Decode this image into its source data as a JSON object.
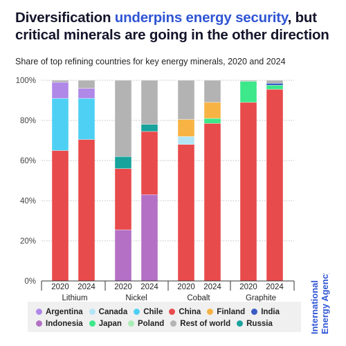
{
  "title": {
    "part1": "Diversification ",
    "accent": "underpins energy security",
    "part2": ", but critical minerals are going in the other direction"
  },
  "subtitle": "Share of top refining countries for key energy minerals, 2020 and 2024",
  "logo": {
    "line1": "International",
    "line2": "Energy Agency",
    "color": "#2f55d4"
  },
  "colors": {
    "Argentina": "#b088e8",
    "Canada": "#b2e5f5",
    "Chile": "#4dd0f4",
    "China": "#e84b4b",
    "Finland": "#f7b344",
    "India": "#3a5cc4",
    "Indonesia": "#b370c4",
    "Japan": "#3ce88a",
    "Poland": "#a8ecb6",
    "Rest of world": "#b3b3b3",
    "Russia": "#18a39c"
  },
  "legend": [
    [
      "Argentina",
      "Canada",
      "Chile",
      "China",
      "Finland",
      "India"
    ],
    [
      "Indonesia",
      "Japan",
      "Poland",
      "Rest of world",
      "Russia"
    ]
  ],
  "chart_data": {
    "type": "bar",
    "stacked": true,
    "title": "Share of top refining countries for key energy minerals, 2020 and 2024",
    "ylim": [
      0,
      100
    ],
    "yticks": [
      "0%",
      "20%",
      "40%",
      "60%",
      "80%",
      "100%"
    ],
    "groups": [
      "Lithium",
      "Nickel",
      "Cobalt",
      "Graphite"
    ],
    "bars": [
      {
        "group": "Lithium",
        "year": "2020",
        "segments": [
          {
            "name": "China",
            "value": 65
          },
          {
            "name": "Chile",
            "value": 26
          },
          {
            "name": "Argentina",
            "value": 8
          },
          {
            "name": "Rest of world",
            "value": 1
          }
        ]
      },
      {
        "group": "Lithium",
        "year": "2024",
        "segments": [
          {
            "name": "China",
            "value": 70.5
          },
          {
            "name": "Chile",
            "value": 20.5
          },
          {
            "name": "Argentina",
            "value": 5
          },
          {
            "name": "Rest of world",
            "value": 4
          }
        ]
      },
      {
        "group": "Nickel",
        "year": "2020",
        "segments": [
          {
            "name": "Indonesia",
            "value": 25.5
          },
          {
            "name": "China",
            "value": 30.5
          },
          {
            "name": "Russia",
            "value": 6
          },
          {
            "name": "Rest of world",
            "value": 38
          }
        ]
      },
      {
        "group": "Nickel",
        "year": "2024",
        "segments": [
          {
            "name": "Indonesia",
            "value": 43
          },
          {
            "name": "China",
            "value": 31.5
          },
          {
            "name": "Russia",
            "value": 3.5
          },
          {
            "name": "Rest of world",
            "value": 22
          }
        ]
      },
      {
        "group": "Cobalt",
        "year": "2020",
        "segments": [
          {
            "name": "China",
            "value": 68
          },
          {
            "name": "Canada",
            "value": 4
          },
          {
            "name": "Finland",
            "value": 8.5
          },
          {
            "name": "Rest of world",
            "value": 19.5
          }
        ]
      },
      {
        "group": "Cobalt",
        "year": "2024",
        "segments": [
          {
            "name": "China",
            "value": 78.5
          },
          {
            "name": "Japan",
            "value": 2.5
          },
          {
            "name": "Finland",
            "value": 8
          },
          {
            "name": "Rest of world",
            "value": 11
          }
        ]
      },
      {
        "group": "Graphite",
        "year": "2020",
        "segments": [
          {
            "name": "China",
            "value": 89
          },
          {
            "name": "Japan",
            "value": 10.5
          },
          {
            "name": "Rest of world",
            "value": 0.5
          }
        ]
      },
      {
        "group": "Graphite",
        "year": "2024",
        "segments": [
          {
            "name": "China",
            "value": 95.5
          },
          {
            "name": "Japan",
            "value": 2
          },
          {
            "name": "India",
            "value": 1
          },
          {
            "name": "Rest of world",
            "value": 1.5
          }
        ]
      }
    ]
  }
}
